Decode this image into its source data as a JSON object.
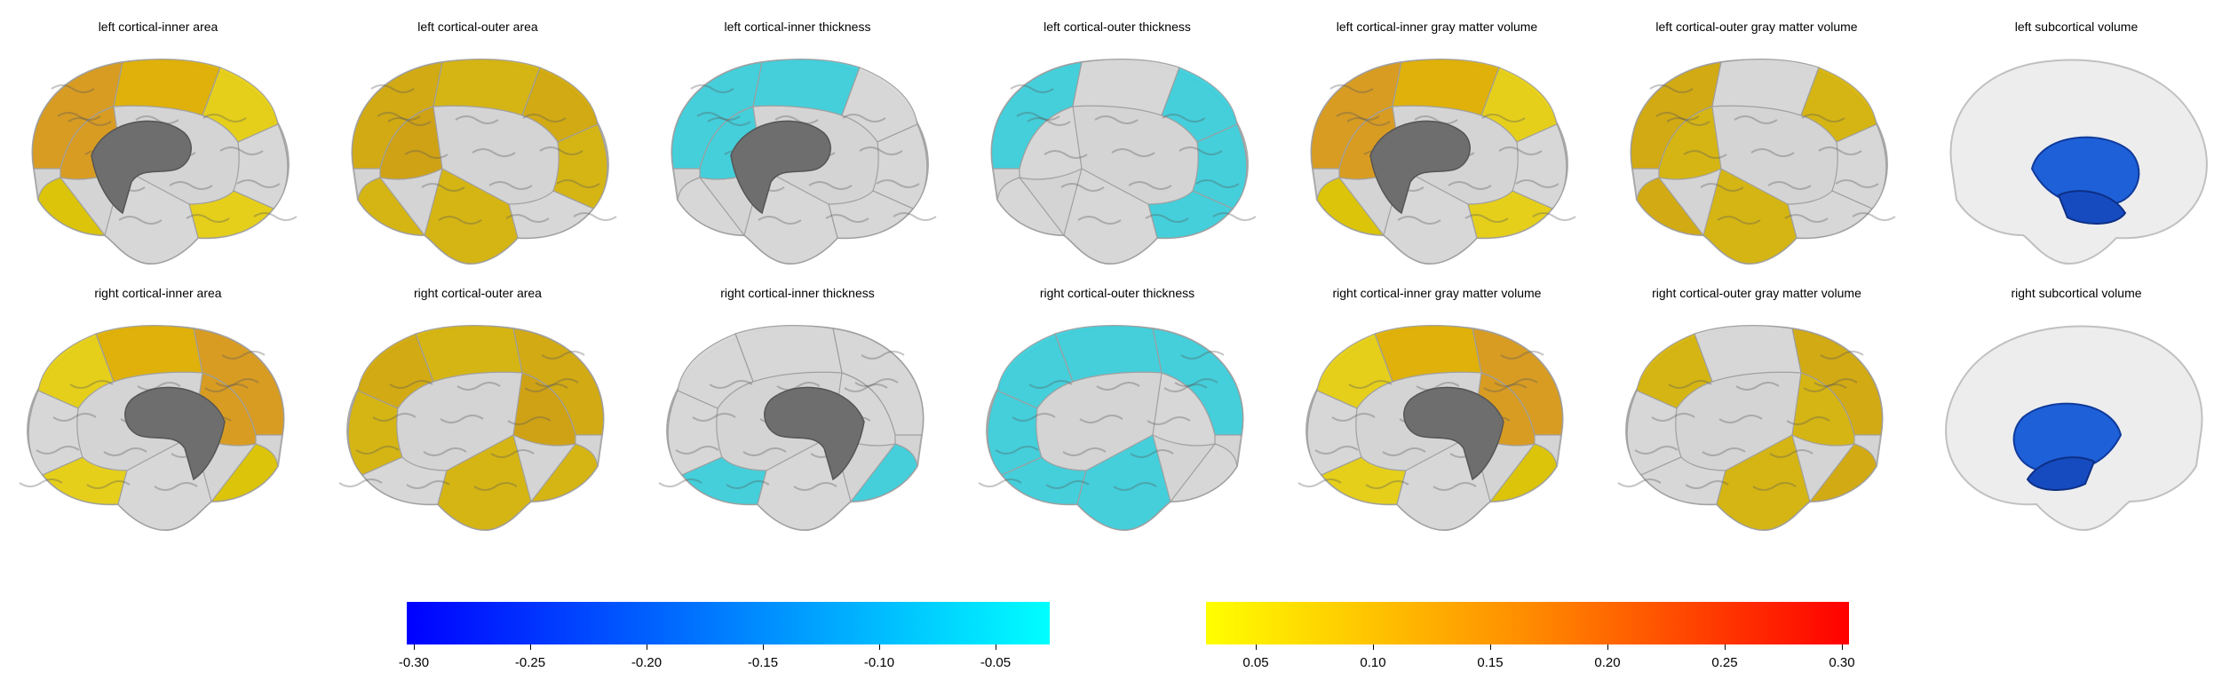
{
  "panels": [
    {
      "title": "left cortical-inner area",
      "view": "medial-left",
      "palette": "hot",
      "regions": [
        "#d99a1a",
        "#e0b000",
        "#e6cf12",
        "#d8d8d8",
        "#d99a1a",
        "#e6cf12",
        "#d8d8d8",
        "#dcc400"
      ]
    },
    {
      "title": "left cortical-outer area",
      "view": "lateral-left",
      "palette": "hot",
      "regions": [
        "#d2a80a",
        "#d6b40a",
        "#d2a80a",
        "#d6b40a",
        "#cfa00c",
        "#d8d8d8",
        "#d6b40a",
        "#d6b40a"
      ]
    },
    {
      "title": "left cortical-inner thickness",
      "view": "medial-left",
      "palette": "cold",
      "regions": [
        "#3dcfdc",
        "#3dcfdc",
        "#d8d8d8",
        "#d8d8d8",
        "#3dcfdc",
        "#d8d8d8",
        "#d8d8d8",
        "#d8d8d8"
      ]
    },
    {
      "title": "left cortical-outer thickness",
      "view": "lateral-left",
      "palette": "cold",
      "regions": [
        "#3dcfdc",
        "#d8d8d8",
        "#3dcfdc",
        "#3dcfdc",
        "#d8d8d8",
        "#3dcfdc",
        "#d8d8d8",
        "#d8d8d8"
      ]
    },
    {
      "title": "left cortical-inner gray matter volume",
      "view": "medial-left",
      "palette": "hot",
      "regions": [
        "#d99a1a",
        "#e0b000",
        "#e6cf12",
        "#d8d8d8",
        "#d99a1a",
        "#e6cf12",
        "#d8d8d8",
        "#dcc400"
      ]
    },
    {
      "title": "left cortical-outer gray matter volume",
      "view": "lateral-left",
      "palette": "hot",
      "regions": [
        "#d2a80a",
        "#d8d8d8",
        "#d6b40a",
        "#d8d8d8",
        "#d6b40a",
        "#d8d8d8",
        "#d6b40a",
        "#d2a80a"
      ]
    },
    {
      "title": "left subcortical volume",
      "view": "subcortical-left",
      "palette": "cold",
      "regions": [
        "#1e60d8",
        "#164bc0"
      ]
    },
    {
      "title": "right cortical-inner area",
      "view": "medial-right",
      "palette": "hot",
      "regions": [
        "#d99a1a",
        "#e0b000",
        "#e6cf12",
        "#d8d8d8",
        "#d99a1a",
        "#e6cf12",
        "#d8d8d8",
        "#dcc400"
      ]
    },
    {
      "title": "right cortical-outer area",
      "view": "lateral-right",
      "palette": "hot",
      "regions": [
        "#d2a80a",
        "#d6b40a",
        "#d2a80a",
        "#d6b40a",
        "#cfa00c",
        "#d8d8d8",
        "#d6b40a",
        "#d6b40a"
      ]
    },
    {
      "title": "right cortical-inner thickness",
      "view": "medial-right",
      "palette": "cold",
      "regions": [
        "#d8d8d8",
        "#d8d8d8",
        "#d8d8d8",
        "#d8d8d8",
        "#d8d8d8",
        "#3dcfdc",
        "#d8d8d8",
        "#3dcfdc"
      ]
    },
    {
      "title": "right cortical-outer thickness",
      "view": "lateral-right",
      "palette": "cold",
      "regions": [
        "#3dcfdc",
        "#3dcfdc",
        "#3dcfdc",
        "#3dcfdc",
        "#d8d8d8",
        "#3dcfdc",
        "#3dcfdc",
        "#d8d8d8"
      ]
    },
    {
      "title": "right cortical-inner gray matter volume",
      "view": "medial-right",
      "palette": "hot",
      "regions": [
        "#d99a1a",
        "#e0b000",
        "#e6cf12",
        "#d8d8d8",
        "#d99a1a",
        "#e6cf12",
        "#d8d8d8",
        "#dcc400"
      ]
    },
    {
      "title": "right cortical-outer gray matter volume",
      "view": "lateral-right",
      "palette": "hot",
      "regions": [
        "#d2a80a",
        "#d8d8d8",
        "#d6b40a",
        "#d8d8d8",
        "#d6b40a",
        "#d8d8d8",
        "#d6b40a",
        "#d2a80a"
      ]
    },
    {
      "title": "right subcortical volume",
      "view": "subcortical-right",
      "palette": "cold",
      "regions": [
        "#1e60d8",
        "#164bc0"
      ]
    }
  ],
  "colorbars": {
    "cold": {
      "colors": [
        "#0000ff",
        "#00ffff"
      ],
      "ticks": [
        "-0.30",
        "-0.25",
        "-0.20",
        "-0.15",
        "-0.10",
        "-0.05"
      ]
    },
    "hot": {
      "colors": [
        "#ffff00",
        "#ff8c00",
        "#ff0000"
      ],
      "ticks": [
        "0.05",
        "0.10",
        "0.15",
        "0.20",
        "0.25",
        "0.30"
      ]
    }
  }
}
